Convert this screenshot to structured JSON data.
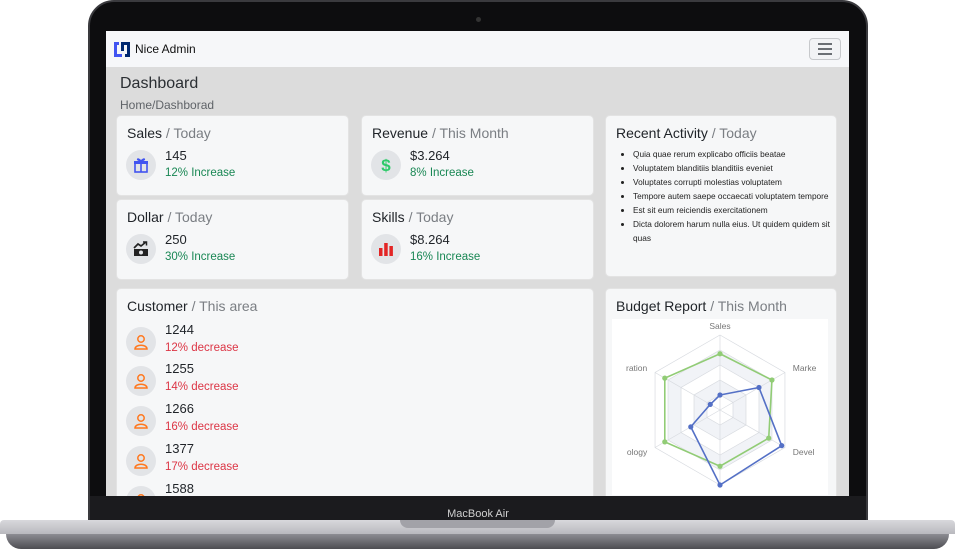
{
  "device": {
    "label": "MacBook Air"
  },
  "header": {
    "brand": "Nice Admin",
    "menu_icon": "hamburger-icon"
  },
  "page": {
    "title": "Dashboard",
    "breadcrumb": "Home/Dashborad"
  },
  "cards": {
    "sales": {
      "title": "Sales",
      "period": "/ Today",
      "value": "145",
      "change": "12% Increase",
      "icon": "gift-icon"
    },
    "revenue": {
      "title": "Revenue",
      "period": "/ This Month",
      "value": "$3.264",
      "change": "8% Increase",
      "icon": "dollar-icon"
    },
    "dollar": {
      "title": "Dollar",
      "period": "/ Today",
      "value": "250",
      "change": "30% Increase",
      "icon": "cash-chart-icon"
    },
    "skills": {
      "title": "Skills",
      "period": "/ Today",
      "value": "$8.264",
      "change": "16% Increase",
      "icon": "bar-chart-icon"
    }
  },
  "activity": {
    "title": "Recent Activity",
    "period": "/ Today",
    "items": [
      "Quia quae rerum explicabo officiis beatae",
      "Voluptatem blanditiis blanditiis eveniet",
      "Voluptates corrupti molestias voluptatem",
      "Tempore autem saepe occaecati voluptatem tempore",
      "Est sit eum reiciendis exercitationem",
      "Dicta dolorem harum nulla eius. Ut quidem quidem sit quas"
    ]
  },
  "customers": {
    "title": "Customer",
    "period": "/ This area",
    "items": [
      {
        "value": "1244",
        "change": "12% decrease"
      },
      {
        "value": "1255",
        "change": "14% decrease"
      },
      {
        "value": "1266",
        "change": "16% decrease"
      },
      {
        "value": "1377",
        "change": "17% decrease"
      },
      {
        "value": "1588",
        "change": ""
      }
    ]
  },
  "budget": {
    "title": "Budget Report",
    "period": "/ This Month"
  },
  "chart_data": {
    "type": "radar",
    "indicators": [
      "Sales",
      "Marke",
      "Devel",
      "",
      "ology",
      "ration"
    ],
    "max": 1,
    "series": [
      {
        "values": [
          0.75,
          0.8,
          0.75,
          0.75,
          0.85,
          0.85
        ],
        "color": "#91cc75"
      },
      {
        "values": [
          0.2,
          0.6,
          0.95,
          1.0,
          0.45,
          0.15
        ],
        "color": "#5470c6"
      }
    ],
    "grid": true
  },
  "colors": {
    "positive": "#198754",
    "negative": "#dc3545",
    "primary": "#4154f1",
    "customer_icon": "#ff771d"
  }
}
